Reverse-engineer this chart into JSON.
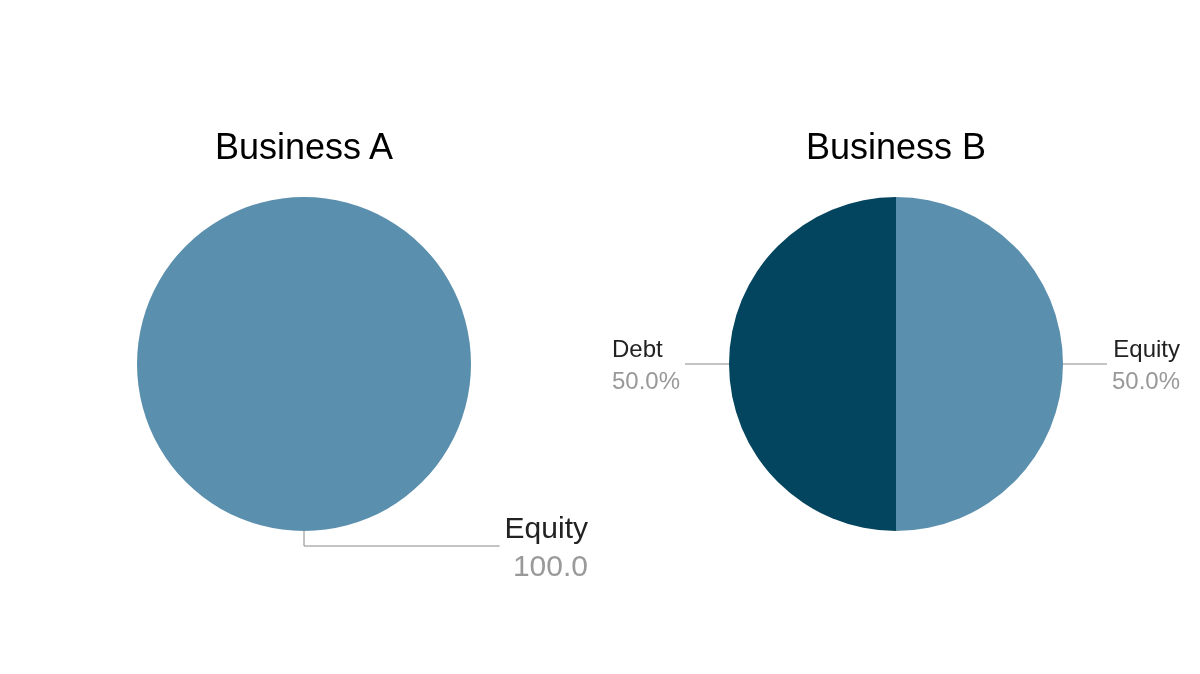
{
  "chart_data": [
    {
      "type": "pie",
      "title": "Business A",
      "categories": [
        "Equity"
      ],
      "values": [
        100
      ],
      "value_labels": [
        "100.0"
      ],
      "colors": [
        "#5b8fae"
      ]
    },
    {
      "type": "pie",
      "title": "Business B",
      "categories": [
        "Debt",
        "Equity"
      ],
      "values": [
        50,
        50
      ],
      "value_labels": [
        "50.0%",
        "50.0%"
      ],
      "colors": [
        "#03445e",
        "#5b8fae"
      ]
    }
  ]
}
